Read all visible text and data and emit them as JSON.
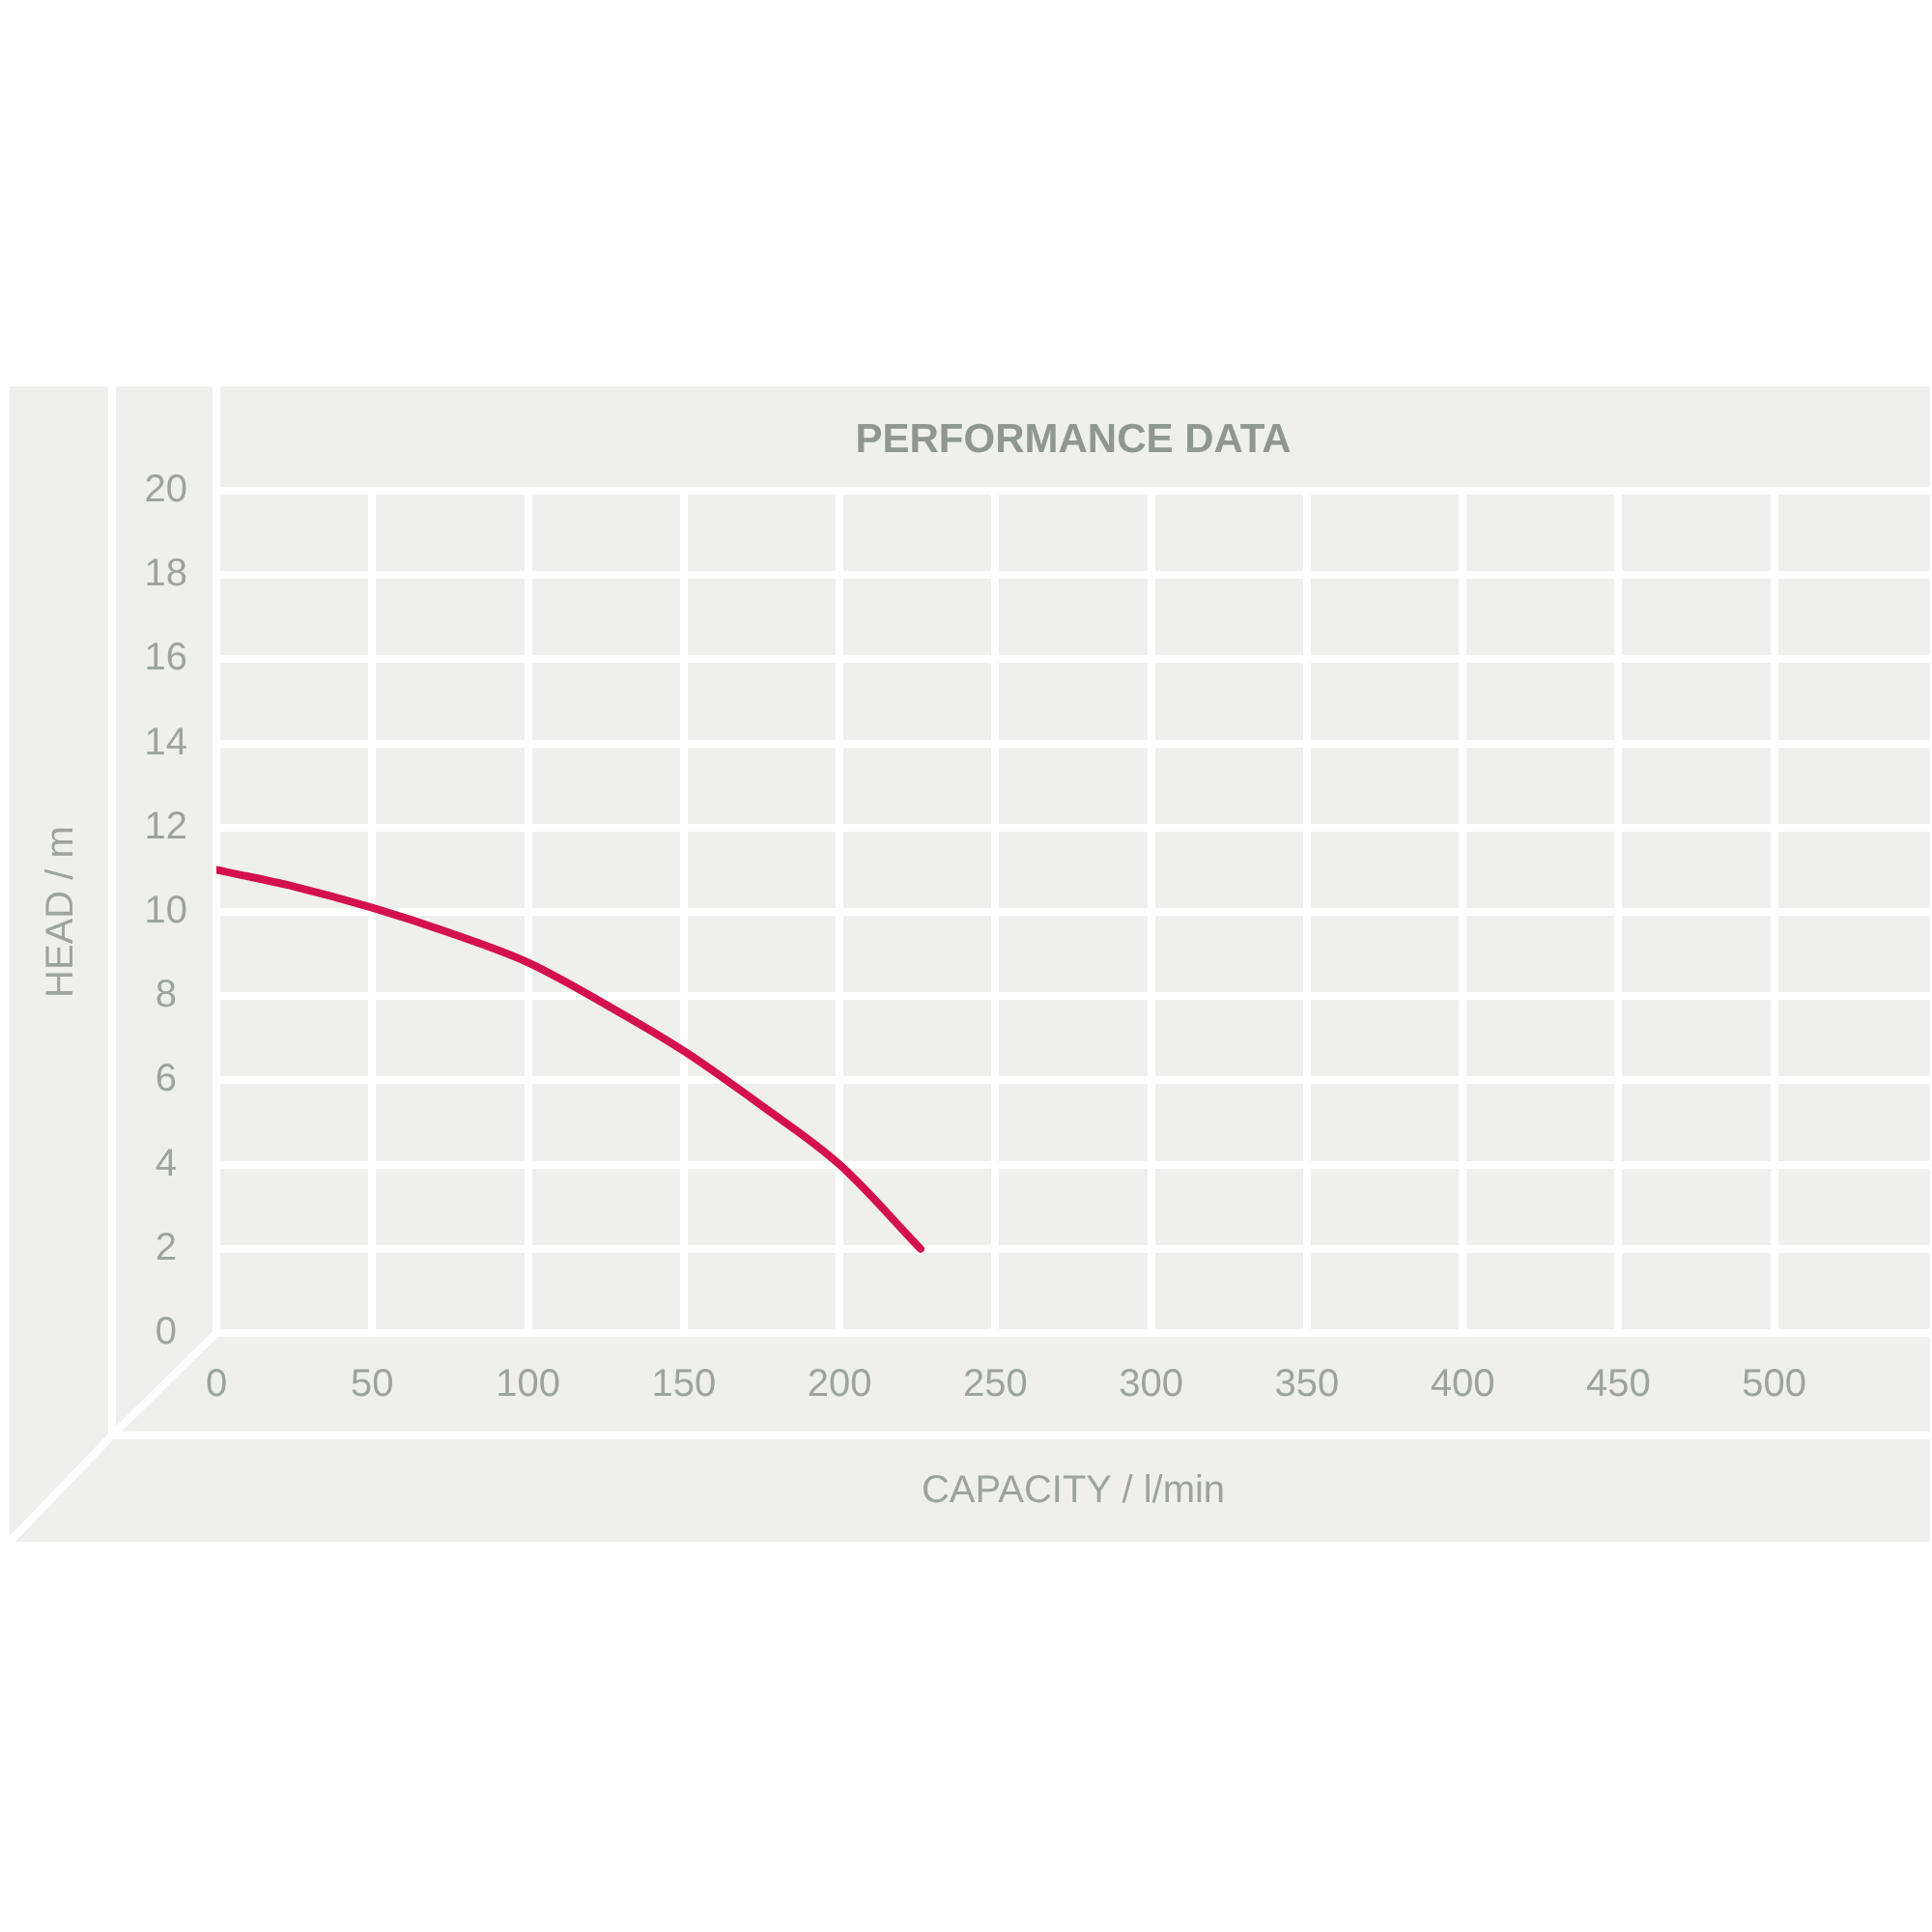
{
  "chart_data": {
    "type": "line",
    "title": "PERFORMANCE DATA",
    "xlabel": "CAPACITY / l/min",
    "ylabel": "HEAD / m",
    "x": [
      0,
      25,
      50,
      75,
      100,
      125,
      150,
      175,
      200,
      226
    ],
    "series": [
      {
        "color": "#d4114e",
        "values": [
          11.0,
          10.6,
          10.1,
          9.5,
          8.8,
          7.8,
          6.7,
          5.4,
          4.0,
          2.0
        ]
      }
    ],
    "xlim": [
      0,
      550
    ],
    "xticks": [
      0,
      50,
      100,
      150,
      200,
      250,
      300,
      350,
      400,
      450,
      500
    ],
    "ylim": [
      0,
      20
    ],
    "yticks": [
      0,
      2,
      4,
      6,
      8,
      10,
      12,
      14,
      16,
      18,
      20
    ],
    "grid": true,
    "marker": "none",
    "line_style": "solid"
  }
}
